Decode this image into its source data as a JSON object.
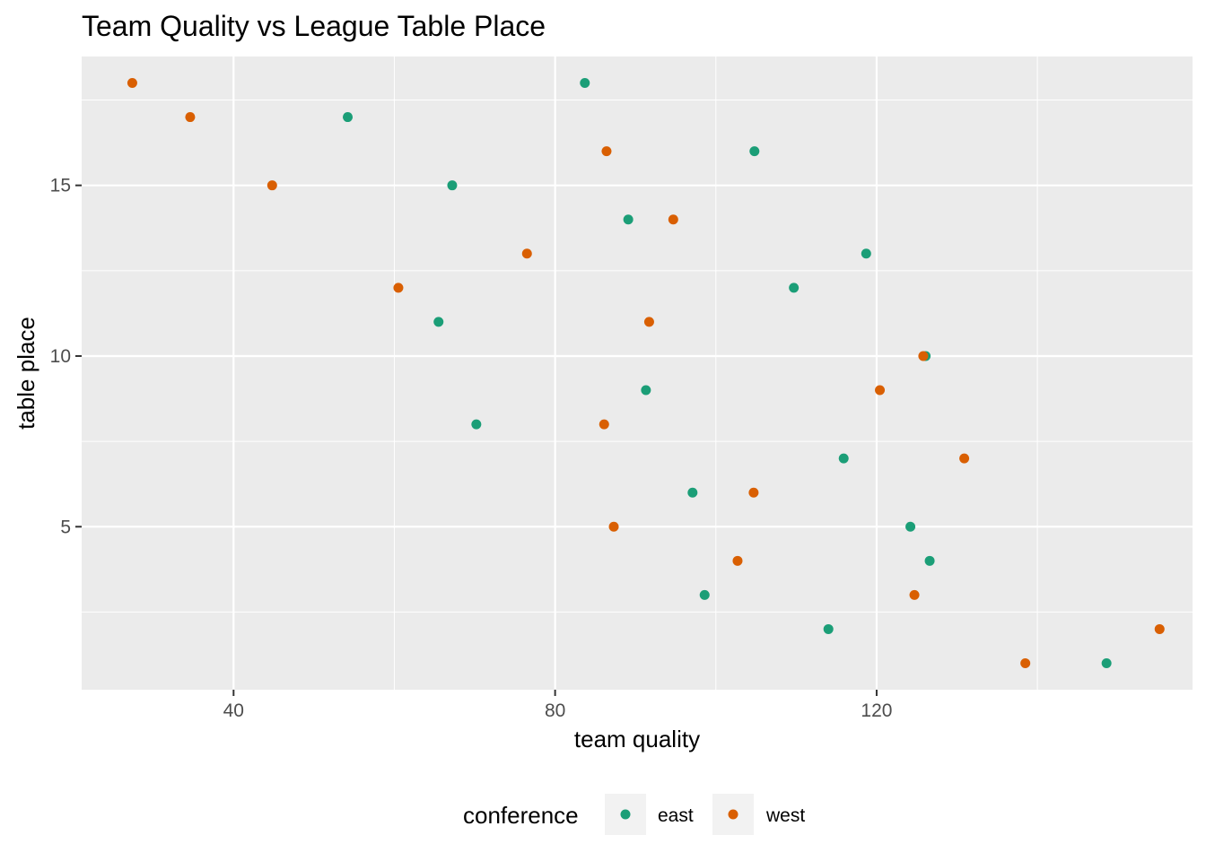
{
  "chart_data": {
    "type": "scatter",
    "title": "Team Quality vs League Table Place",
    "xlabel": "team quality",
    "ylabel": "table place",
    "xlim": [
      21.1,
      159.3
    ],
    "ylim": [
      0.225,
      18.775
    ],
    "x_ticks": [
      40,
      80,
      120
    ],
    "y_ticks": [
      5,
      10,
      15
    ],
    "grid": true,
    "legend": {
      "title": "conference",
      "placement": "bottom",
      "entries": [
        "east",
        "west"
      ]
    },
    "colors": {
      "east": "#1b9e77",
      "west": "#d95f02",
      "panel": "#ebebeb",
      "grid": "#ffffff"
    },
    "series": [
      {
        "name": "east",
        "points": [
          {
            "x": 83.7,
            "y": 18
          },
          {
            "x": 54.2,
            "y": 17
          },
          {
            "x": 104.8,
            "y": 16
          },
          {
            "x": 67.2,
            "y": 15
          },
          {
            "x": 89.1,
            "y": 14
          },
          {
            "x": 118.7,
            "y": 13
          },
          {
            "x": 109.7,
            "y": 12
          },
          {
            "x": 65.5,
            "y": 11
          },
          {
            "x": 126.1,
            "y": 10
          },
          {
            "x": 91.3,
            "y": 9
          },
          {
            "x": 70.2,
            "y": 8
          },
          {
            "x": 115.9,
            "y": 7
          },
          {
            "x": 97.1,
            "y": 6
          },
          {
            "x": 124.2,
            "y": 5
          },
          {
            "x": 126.6,
            "y": 4
          },
          {
            "x": 98.6,
            "y": 3
          },
          {
            "x": 114.0,
            "y": 2
          },
          {
            "x": 148.6,
            "y": 1
          }
        ]
      },
      {
        "name": "west",
        "points": [
          {
            "x": 27.4,
            "y": 18
          },
          {
            "x": 34.6,
            "y": 17
          },
          {
            "x": 86.4,
            "y": 16
          },
          {
            "x": 44.8,
            "y": 15
          },
          {
            "x": 94.7,
            "y": 14
          },
          {
            "x": 76.5,
            "y": 13
          },
          {
            "x": 60.5,
            "y": 12
          },
          {
            "x": 91.7,
            "y": 11
          },
          {
            "x": 125.8,
            "y": 10
          },
          {
            "x": 120.4,
            "y": 9
          },
          {
            "x": 86.1,
            "y": 8
          },
          {
            "x": 130.9,
            "y": 7
          },
          {
            "x": 104.7,
            "y": 6
          },
          {
            "x": 87.3,
            "y": 5
          },
          {
            "x": 102.7,
            "y": 4
          },
          {
            "x": 124.7,
            "y": 3
          },
          {
            "x": 155.2,
            "y": 2
          },
          {
            "x": 138.5,
            "y": 1
          }
        ]
      }
    ]
  }
}
